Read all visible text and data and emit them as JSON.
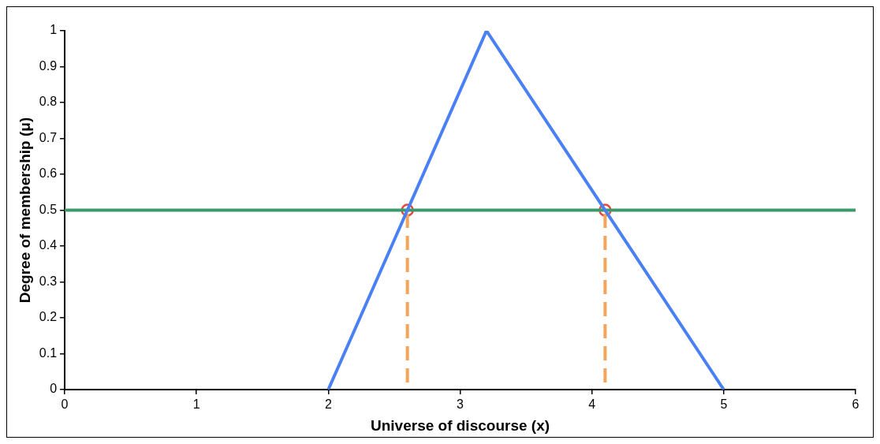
{
  "chart_data": {
    "type": "line",
    "xlabel": "Universe of discourse (x)",
    "ylabel": "Degree of membership (μ)",
    "xlim": [
      0,
      6
    ],
    "xticks": [
      0,
      1,
      2,
      3,
      4,
      5,
      6
    ],
    "ylim": [
      0,
      1
    ],
    "yticks": [
      0,
      0.1,
      0.2,
      0.3,
      0.4,
      0.5,
      0.6,
      0.7,
      0.8,
      0.9,
      1
    ],
    "grid": false,
    "legend": false,
    "marker": "none",
    "line_style": "solid",
    "series": [
      {
        "type": "line",
        "color": "#4a80f5",
        "x": [
          2,
          3.2,
          5
        ],
        "values": [
          0,
          1,
          0
        ]
      },
      {
        "type": "line",
        "color": "#3a9a6c",
        "x": [
          0,
          6
        ],
        "values": [
          0.5,
          0.5
        ]
      },
      {
        "type": "line",
        "color": "#f5a45a",
        "x": [
          2.6,
          2.6
        ],
        "values": [
          0.02,
          0.5
        ],
        "line_style": "dashed"
      },
      {
        "type": "line",
        "color": "#f5a45a",
        "x": [
          4.1,
          4.1
        ],
        "values": [
          0.02,
          0.5
        ],
        "line_style": "dashed"
      },
      {
        "type": "scatter",
        "color": "#e8463a",
        "x": [
          2.6,
          4.1
        ],
        "values": [
          0.5,
          0.5
        ],
        "marker": "circle"
      }
    ]
  }
}
